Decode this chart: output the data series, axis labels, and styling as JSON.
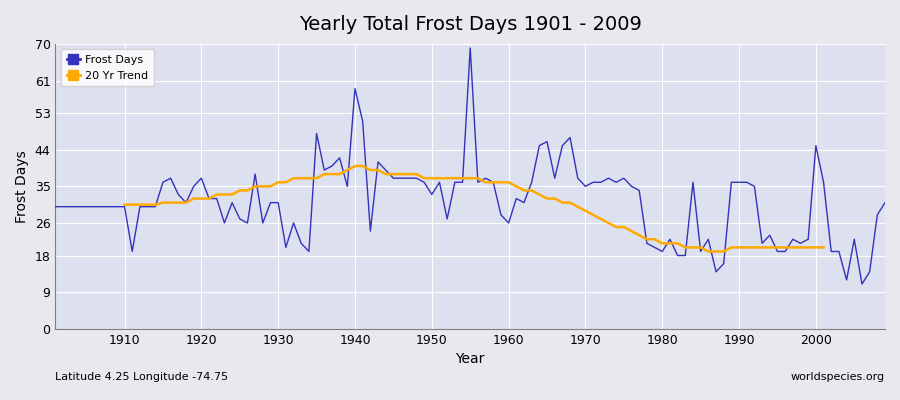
{
  "title": "Yearly Total Frost Days 1901 - 2009",
  "xlabel": "Year",
  "ylabel": "Frost Days",
  "subtitle_left": "Latitude 4.25 Longitude -74.75",
  "subtitle_right": "worldspecies.org",
  "ylim": [
    0,
    70
  ],
  "yticks": [
    0,
    9,
    18,
    26,
    35,
    44,
    53,
    61,
    70
  ],
  "xticks": [
    1910,
    1920,
    1930,
    1940,
    1950,
    1960,
    1970,
    1980,
    1990,
    2000
  ],
  "line_color": "#3333bb",
  "trend_color": "#ffaa00",
  "fig_bg_color": "#e8e8ee",
  "plot_bg_color": "#dde0ee",
  "legend_entries": [
    "Frost Days",
    "20 Yr Trend"
  ],
  "years": [
    1901,
    1902,
    1903,
    1904,
    1905,
    1906,
    1907,
    1908,
    1909,
    1910,
    1911,
    1912,
    1913,
    1914,
    1915,
    1916,
    1917,
    1918,
    1919,
    1920,
    1921,
    1922,
    1923,
    1924,
    1925,
    1926,
    1927,
    1928,
    1929,
    1930,
    1931,
    1932,
    1933,
    1934,
    1935,
    1936,
    1937,
    1938,
    1939,
    1940,
    1941,
    1942,
    1943,
    1944,
    1945,
    1946,
    1947,
    1948,
    1949,
    1950,
    1951,
    1952,
    1953,
    1954,
    1955,
    1956,
    1957,
    1958,
    1959,
    1960,
    1961,
    1962,
    1963,
    1964,
    1965,
    1966,
    1967,
    1968,
    1969,
    1970,
    1971,
    1972,
    1973,
    1974,
    1975,
    1976,
    1977,
    1978,
    1979,
    1980,
    1981,
    1982,
    1983,
    1984,
    1985,
    1986,
    1987,
    1988,
    1989,
    1990,
    1991,
    1992,
    1993,
    1994,
    1995,
    1996,
    1997,
    1998,
    1999,
    2000,
    2001,
    2002,
    2003,
    2004,
    2005,
    2006,
    2007,
    2008,
    2009
  ],
  "frost_days": [
    30,
    30,
    30,
    30,
    30,
    30,
    30,
    30,
    30,
    30,
    19,
    30,
    30,
    30,
    36,
    37,
    33,
    31,
    35,
    37,
    32,
    32,
    26,
    31,
    27,
    26,
    38,
    26,
    31,
    31,
    20,
    26,
    21,
    19,
    48,
    39,
    40,
    42,
    35,
    59,
    51,
    24,
    41,
    39,
    37,
    37,
    37,
    37,
    36,
    33,
    36,
    27,
    36,
    36,
    69,
    36,
    37,
    36,
    28,
    26,
    32,
    31,
    36,
    45,
    46,
    37,
    45,
    47,
    37,
    35,
    36,
    36,
    37,
    36,
    37,
    35,
    34,
    21,
    20,
    19,
    22,
    18,
    18,
    36,
    19,
    22,
    14,
    16,
    36,
    36,
    36,
    35,
    21,
    23,
    19,
    19,
    22,
    21,
    22,
    45,
    36,
    19,
    19,
    12,
    22,
    11,
    14,
    28,
    31
  ],
  "trend_years": [
    1910,
    1911,
    1912,
    1913,
    1914,
    1915,
    1916,
    1917,
    1918,
    1919,
    1920,
    1921,
    1922,
    1923,
    1924,
    1925,
    1926,
    1927,
    1928,
    1929,
    1930,
    1931,
    1932,
    1933,
    1934,
    1935,
    1936,
    1937,
    1938,
    1939,
    1940,
    1941,
    1942,
    1943,
    1944,
    1945,
    1946,
    1947,
    1948,
    1949,
    1950,
    1951,
    1952,
    1953,
    1954,
    1955,
    1956,
    1957,
    1958,
    1959,
    1960,
    1961,
    1962,
    1963,
    1964,
    1965,
    1966,
    1967,
    1968,
    1969,
    1970,
    1971,
    1972,
    1973,
    1974,
    1975,
    1976,
    1977,
    1978,
    1979,
    1980,
    1981,
    1982,
    1983,
    1984,
    1985,
    1986,
    1987,
    1988,
    1989,
    1990,
    1991,
    1992,
    1993,
    1994,
    1995,
    1996,
    1997,
    1998,
    1999,
    2000,
    2001
  ],
  "trend_values": [
    30.5,
    30.5,
    30.5,
    30.5,
    30.5,
    31,
    31,
    31,
    31,
    32,
    32,
    32,
    33,
    33,
    33,
    34,
    34,
    35,
    35,
    35,
    36,
    36,
    37,
    37,
    37,
    37,
    38,
    38,
    38,
    39,
    40,
    40,
    39,
    39,
    38,
    38,
    38,
    38,
    38,
    37,
    37,
    37,
    37,
    37,
    37,
    37,
    37,
    36,
    36,
    36,
    36,
    35,
    34,
    34,
    33,
    32,
    32,
    31,
    31,
    30,
    29,
    28,
    27,
    26,
    25,
    25,
    24,
    23,
    22,
    22,
    21,
    21,
    21,
    20,
    20,
    20,
    19,
    19,
    19,
    20,
    20,
    20,
    20,
    20,
    20,
    20,
    20,
    20,
    20,
    20,
    20,
    20
  ]
}
